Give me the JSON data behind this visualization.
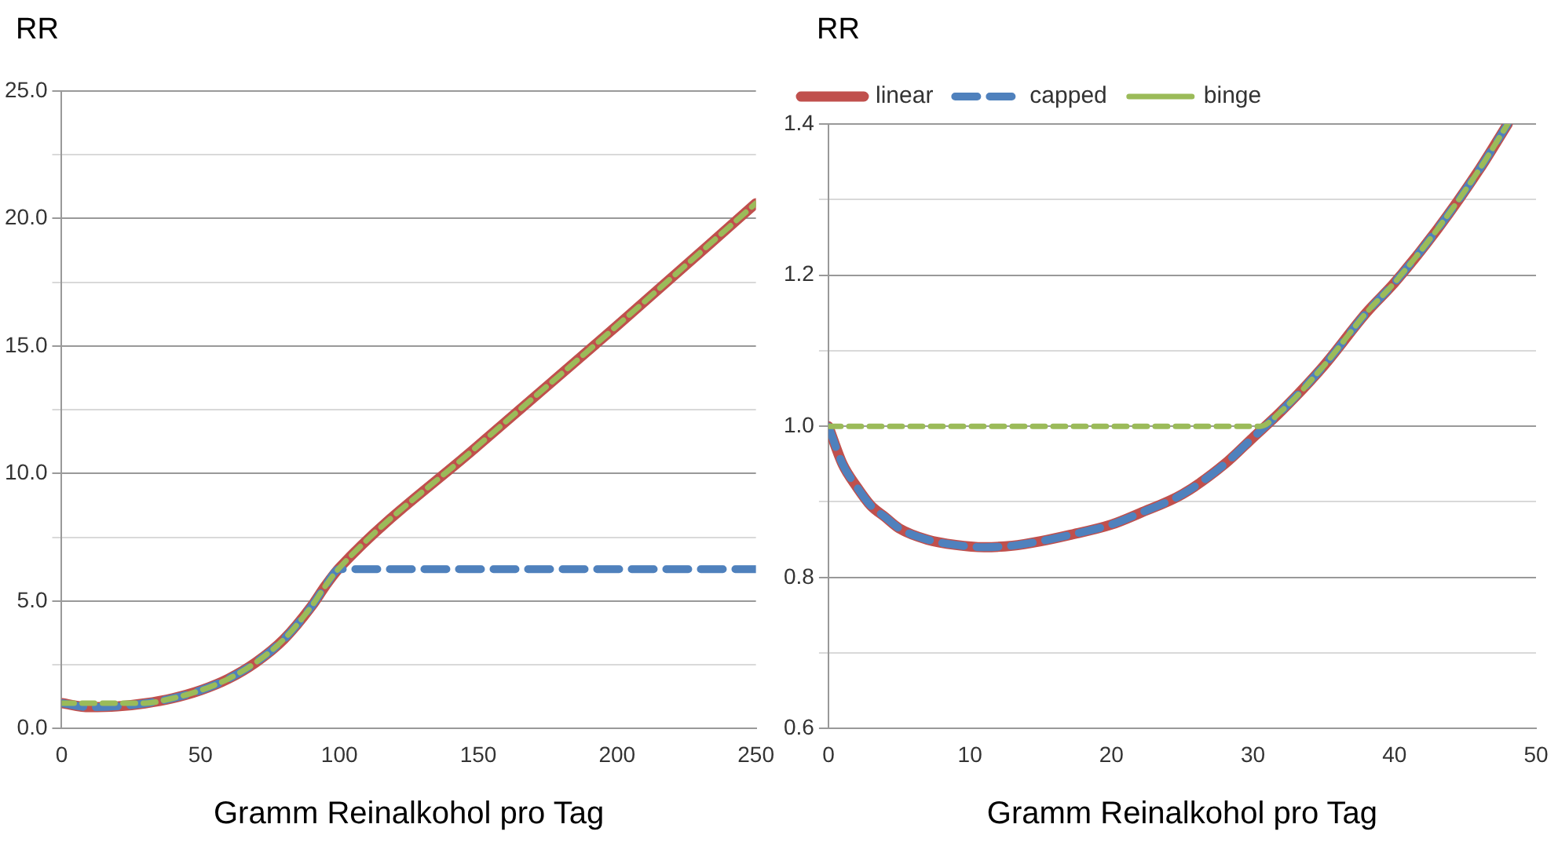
{
  "chart_data": [
    {
      "type": "line",
      "ylabel": "RR",
      "xlabel": "Gramm Reinalkohol pro Tag",
      "xlim": [
        0,
        250
      ],
      "xticks": [
        0,
        50,
        100,
        150,
        200,
        250
      ],
      "ylim": [
        0,
        25
      ],
      "yticks": [
        {
          "value": 0,
          "label": "0.0"
        },
        {
          "value": 2.5,
          "label": null
        },
        {
          "value": 5,
          "label": "5.0"
        },
        {
          "value": 7.5,
          "label": null
        },
        {
          "value": 10,
          "label": "10.0"
        },
        {
          "value": 12.5,
          "label": null
        },
        {
          "value": 15,
          "label": "15.0"
        },
        {
          "value": 17.5,
          "label": null
        },
        {
          "value": 20,
          "label": "20.0"
        },
        {
          "value": 22.5,
          "label": null
        },
        {
          "value": 25,
          "label": "25.0"
        }
      ],
      "grid": "y",
      "marker": "none",
      "series": [
        {
          "color": "#c0504d",
          "line_style": "solid",
          "x": [
            0,
            10,
            20,
            30,
            40,
            50,
            60,
            70,
            80,
            90,
            95,
            100,
            150,
            200,
            250
          ],
          "values": [
            1.0,
            0.84,
            0.87,
            0.99,
            1.19,
            1.5,
            1.95,
            2.6,
            3.5,
            4.8,
            5.6,
            6.3,
            11.1,
            15.8,
            20.6
          ]
        },
        {
          "color": "#4f81bd",
          "line_style": "dashed",
          "x": [
            0,
            10,
            20,
            30,
            40,
            50,
            60,
            70,
            80,
            90,
            95,
            100,
            250
          ],
          "values": [
            1.0,
            0.84,
            0.87,
            0.99,
            1.19,
            1.5,
            1.95,
            2.6,
            3.5,
            4.8,
            5.6,
            6.25,
            6.25
          ]
        },
        {
          "color": "#9bbb59",
          "line_style": "dotted",
          "x": [
            0,
            30,
            40,
            50,
            60,
            70,
            80,
            90,
            95,
            100,
            150,
            200,
            250
          ],
          "values": [
            1.0,
            1.0,
            1.19,
            1.5,
            1.95,
            2.6,
            3.5,
            4.8,
            5.6,
            6.3,
            11.1,
            15.8,
            20.6
          ]
        }
      ]
    },
    {
      "type": "line",
      "ylabel": "RR",
      "xlabel": "Gramm Reinalkohol pro Tag",
      "xlim": [
        0,
        50
      ],
      "xticks": [
        0,
        10,
        20,
        30,
        40,
        50
      ],
      "ylim": [
        0.6,
        1.4
      ],
      "yticks": [
        0.6,
        {
          "value": 0.7,
          "label": null
        },
        0.8,
        {
          "value": 0.9,
          "label": null
        },
        {
          "value": 1.0,
          "label": "1.0"
        },
        {
          "value": 1.1,
          "label": null
        },
        1.2,
        {
          "value": 1.3,
          "label": null
        },
        1.4
      ],
      "grid": "y",
      "marker": "none",
      "legend": "top left",
      "series": [
        {
          "name": "linear",
          "color": "#c0504d",
          "line_style": "solid",
          "x": [
            0,
            1,
            2,
            3,
            4,
            5,
            7,
            9,
            11,
            13,
            15,
            17,
            20,
            22,
            25,
            28,
            30,
            32,
            35,
            38,
            40,
            43,
            46,
            48
          ],
          "values": [
            1.0,
            0.95,
            0.92,
            0.895,
            0.88,
            0.865,
            0.85,
            0.843,
            0.84,
            0.842,
            0.848,
            0.856,
            0.87,
            0.885,
            0.91,
            0.95,
            0.985,
            1.02,
            1.08,
            1.15,
            1.19,
            1.26,
            1.34,
            1.4
          ]
        },
        {
          "name": "capped",
          "color": "#4f81bd",
          "line_style": "dashed",
          "x": [
            0,
            1,
            2,
            3,
            4,
            5,
            7,
            9,
            11,
            13,
            15,
            17,
            20,
            22,
            25,
            28,
            30,
            32,
            35,
            38,
            40,
            43,
            46,
            48
          ],
          "values": [
            1.0,
            0.95,
            0.92,
            0.895,
            0.88,
            0.865,
            0.85,
            0.843,
            0.84,
            0.842,
            0.848,
            0.856,
            0.87,
            0.885,
            0.91,
            0.95,
            0.985,
            1.02,
            1.08,
            1.15,
            1.19,
            1.26,
            1.34,
            1.4
          ]
        },
        {
          "name": "binge",
          "color": "#9bbb59",
          "line_style": "dotted",
          "x": [
            0,
            30,
            30.5,
            32,
            35,
            38,
            40,
            43,
            46,
            48
          ],
          "values": [
            1.0,
            1.0,
            1.0,
            1.02,
            1.08,
            1.15,
            1.19,
            1.26,
            1.34,
            1.4
          ]
        }
      ]
    }
  ]
}
